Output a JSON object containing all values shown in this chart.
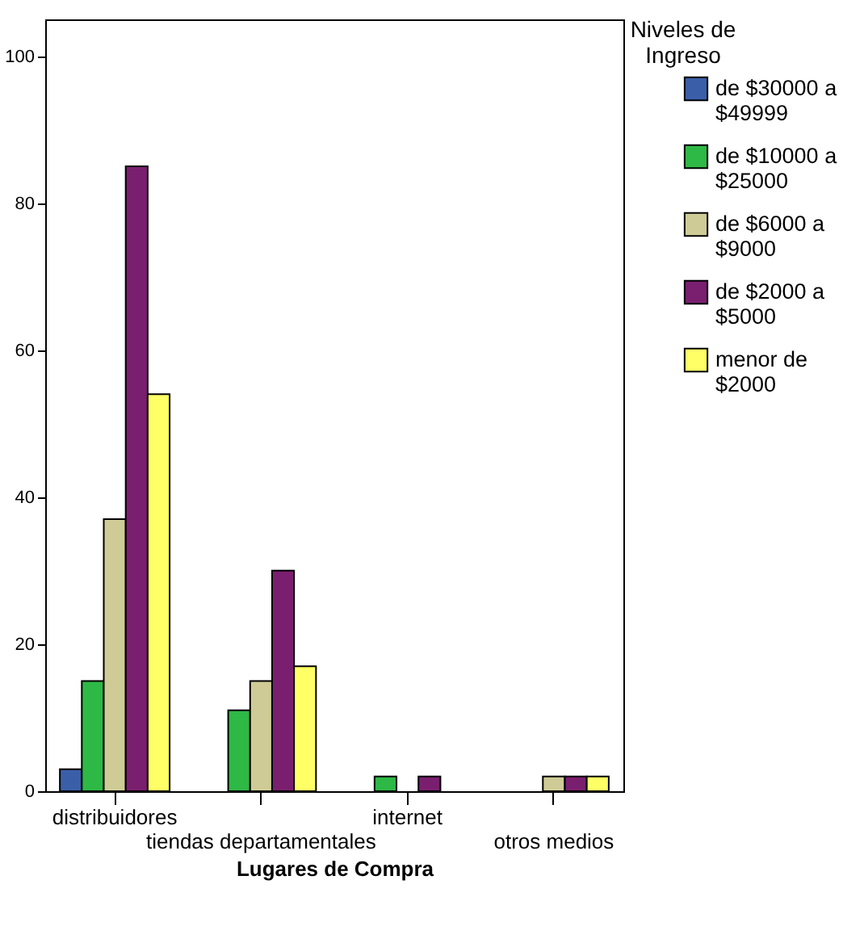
{
  "chart_data": {
    "type": "bar",
    "xlabel": "Lugares de Compra",
    "legend_title": "Niveles de Ingreso",
    "categories": [
      "distribuidores",
      "tiendas departamentales",
      "internet",
      "otros medios"
    ],
    "series": [
      {
        "name": "de $30000 a $49999",
        "color": "#3a5fa8",
        "values": [
          3,
          null,
          null,
          null
        ]
      },
      {
        "name": "de $10000 a $25000",
        "color": "#2eb845",
        "values": [
          15,
          11,
          2,
          null
        ]
      },
      {
        "name": "de $6000 a $9000",
        "color": "#cfcb96",
        "values": [
          37,
          15,
          null,
          2
        ]
      },
      {
        "name": "de $2000 a $5000",
        "color": "#7a1f6f",
        "values": [
          85,
          30,
          2,
          2
        ]
      },
      {
        "name": "menor de $2000",
        "color": "#ffff66",
        "values": [
          54,
          17,
          null,
          2
        ]
      }
    ],
    "ylim": [
      0,
      105
    ],
    "yticks": [
      0,
      20,
      40,
      60,
      80,
      100
    ],
    "grid": false,
    "legend": "right"
  }
}
